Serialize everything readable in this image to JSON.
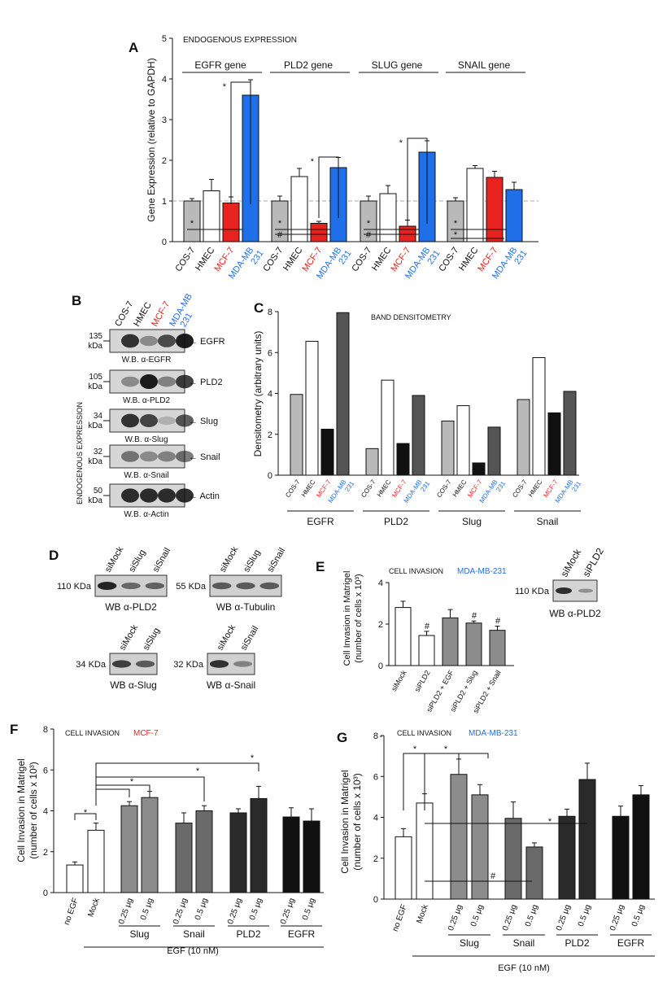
{
  "colors": {
    "red": "#e8231f",
    "blue": "#1f6fe8",
    "gray_light": "#b9b9b9",
    "gray_mid": "#8c8c8c",
    "gray_dark": "#555555",
    "black": "#111111",
    "white": "#ffffff",
    "dashed": "#aaaaaa"
  },
  "panelA": {
    "letter": "A",
    "title": "ENDOGENOUS EXPRESSION",
    "ylabel": "Gene Expression (relative to GAPDH)",
    "yticks": [
      "0",
      "1",
      "2",
      "3",
      "4",
      "5"
    ],
    "cell_lines": [
      {
        "label": "COS-7",
        "color": "#111111"
      },
      {
        "label": "HMEC",
        "color": "#111111"
      },
      {
        "label": "MCF-7",
        "color": "#e8231f"
      },
      {
        "label": "MDA-MB 231",
        "color": "#1f6fe8"
      }
    ],
    "sig_star": "*",
    "sig_hash": "#"
  },
  "panelB": {
    "letter": "B",
    "side_label": "ENDOGENOUS EXPRESSION",
    "lanes": [
      {
        "label": "COS-7",
        "color": "#111111"
      },
      {
        "label": "HMEC",
        "color": "#111111"
      },
      {
        "label": "MCF-7",
        "color": "#e8231f"
      },
      {
        "label": "MDA-MB 231",
        "color": "#1f6fe8"
      }
    ],
    "blots": [
      {
        "mw": "135 kDa",
        "antibody": "W.B. α-EGFR",
        "protein": "EGFR"
      },
      {
        "mw": "105 kDa",
        "antibody": "W.B. α-PLD2",
        "protein": "PLD2"
      },
      {
        "mw": "34 kDa",
        "antibody": "W.B. α-Slug",
        "protein": "Slug"
      },
      {
        "mw": "32 kDa",
        "antibody": "W.B. α-Snail",
        "protein": "Snail"
      },
      {
        "mw": "50 kDa",
        "antibody": "W.B. α-Actin",
        "protein": "Actin"
      }
    ]
  },
  "panelC": {
    "letter": "C",
    "title": "BAND DENSITOMETRY",
    "ylabel": "Densitometry (arbitrary units)"
  },
  "panelD": {
    "letter": "D",
    "blots": [
      {
        "lanes": [
          "siMock",
          "siSlug",
          "siSnail"
        ],
        "mw": "110 KDa",
        "antibody": "WB α-PLD2"
      },
      {
        "lanes": [
          "siMock",
          "siSlug",
          "siSnail"
        ],
        "mw": "55 KDa",
        "antibody": "WB α-Tubulin"
      },
      {
        "lanes": [
          "siMock",
          "siSlug"
        ],
        "mw": "34 KDa",
        "antibody": "WB α-Slug"
      },
      {
        "lanes": [
          "siMock",
          "siSnail"
        ],
        "mw": "32 KDa",
        "antibody": "WB α-Snail"
      }
    ]
  },
  "panelE": {
    "letter": "E",
    "title": "CELL INVASION",
    "cell_line": "MDA-MB-231",
    "ylabel1": "Cell Invasion in Matrigel",
    "ylabel2": "(number of cells x 10³)",
    "blot": {
      "lanes": [
        "siMock",
        "siPLD2"
      ],
      "mw": "110 KDa",
      "antibody": "WB α-PLD2"
    }
  },
  "panelF": {
    "letter": "F",
    "title": "CELL INVASION",
    "cell_line": "MCF-7",
    "ylabel1": "Cell Invasion in Matrigel",
    "ylabel2": "(number of cells x 10³)",
    "group_labels": [
      "Slug",
      "Snail",
      "PLD2",
      "EGFR"
    ],
    "footer": "EGF (10 nM)"
  },
  "panelG": {
    "letter": "G",
    "title": "CELL INVASION",
    "cell_line": "MDA-MB-231",
    "ylabel1": "Cell Invasion in Matrigel",
    "ylabel2": "(number of cells x 10³)",
    "group_labels": [
      "Slug",
      "Snail",
      "PLD2",
      "EGFR"
    ],
    "footer": "EGF (10 nM)"
  },
  "chart_data": [
    {
      "id": "A",
      "type": "bar",
      "title": "ENDOGENOUS EXPRESSION",
      "ylabel": "Gene Expression (relative to GAPDH)",
      "ylim": [
        0,
        5
      ],
      "groups": [
        "EGFR gene",
        "PLD2 gene",
        "SLUG gene",
        "SNAIL gene"
      ],
      "categories": [
        "COS-7",
        "HMEC",
        "MCF-7",
        "MDA-MB 231"
      ],
      "series": [
        {
          "name": "EGFR gene",
          "values": [
            1.0,
            1.25,
            0.95,
            3.6
          ],
          "errors": [
            0.06,
            0.28,
            0.15,
            0.38
          ]
        },
        {
          "name": "PLD2 gene",
          "values": [
            1.0,
            1.6,
            0.45,
            1.82
          ],
          "errors": [
            0.12,
            0.2,
            0.05,
            0.25
          ]
        },
        {
          "name": "SLUG gene",
          "values": [
            1.0,
            1.18,
            0.38,
            2.2
          ],
          "errors": [
            0.12,
            0.2,
            0.15,
            0.28
          ]
        },
        {
          "name": "SNAIL gene",
          "values": [
            1.0,
            1.8,
            1.58,
            1.28
          ],
          "errors": [
            0.08,
            0.07,
            0.15,
            0.18
          ]
        }
      ],
      "reference_line": 1
    },
    {
      "id": "C",
      "type": "bar",
      "title": "BAND DENSITOMETRY",
      "ylabel": "Densitometry (arbitrary units)",
      "ylim": [
        0,
        8
      ],
      "yticks": [
        0,
        2,
        4,
        6,
        8
      ],
      "groups": [
        "EGFR",
        "PLD2",
        "Slug",
        "Snail"
      ],
      "categories": [
        "COS-7",
        "HMEC",
        "MCF-7",
        "MDA-MB 231"
      ],
      "series": [
        {
          "name": "EGFR",
          "values": [
            3.95,
            6.55,
            2.25,
            7.95
          ]
        },
        {
          "name": "PLD2",
          "values": [
            1.3,
            4.65,
            1.55,
            3.9
          ]
        },
        {
          "name": "Slug",
          "values": [
            2.65,
            3.4,
            0.6,
            2.35
          ]
        },
        {
          "name": "Snail",
          "values": [
            3.7,
            5.75,
            3.05,
            4.1
          ]
        }
      ]
    },
    {
      "id": "E",
      "type": "bar",
      "ylim": [
        0,
        4
      ],
      "yticks": [
        0,
        2,
        4
      ],
      "categories": [
        "siMock",
        "siPLD2",
        "siPLD2 + EGF",
        "siPLD2 + Slug",
        "siPLD2 + Snail"
      ],
      "values": [
        2.8,
        1.45,
        2.3,
        2.05,
        1.7
      ],
      "errors": [
        0.3,
        0.2,
        0.4,
        0.1,
        0.2
      ],
      "annotations": [
        "",
        "#",
        "",
        "#",
        "#"
      ]
    },
    {
      "id": "F",
      "type": "bar",
      "ylim": [
        0,
        8
      ],
      "yticks": [
        0,
        2,
        4,
        6,
        8
      ],
      "categories": [
        "no EGF",
        "Mock",
        "Slug 0.25 μg",
        "Slug 0.5 μg",
        "Snail 0.25 μg",
        "Snail 0.5 μg",
        "PLD2 0.25 μg",
        "PLD2 0.5 μg",
        "EGFR 0.25 μg",
        "EGFR 0.5 μg"
      ],
      "values": [
        1.35,
        3.05,
        4.25,
        4.65,
        3.4,
        4.0,
        3.9,
        4.6,
        3.7,
        3.5
      ],
      "errors": [
        0.15,
        0.35,
        0.2,
        0.3,
        0.5,
        0.25,
        0.2,
        0.6,
        0.45,
        0.6
      ],
      "x_ticks_sub": [
        "0.25 μg",
        "0.5 μg"
      ]
    },
    {
      "id": "G",
      "type": "bar",
      "ylim": [
        0,
        8
      ],
      "yticks": [
        0,
        2,
        4,
        6,
        8
      ],
      "categories": [
        "no EGF",
        "Mock",
        "Slug 0.25 μg",
        "Slug 0.5 μg",
        "Snail 0.25 μg",
        "Snail 0.5 μg",
        "PLD2 0.25 μg",
        "PLD2 0.5 μg",
        "EGFR 0.25 μg",
        "EGFR 0.5 μg"
      ],
      "values": [
        3.05,
        4.7,
        6.1,
        5.1,
        3.95,
        2.55,
        4.05,
        5.85,
        4.05,
        5.1
      ],
      "errors": [
        0.4,
        0.45,
        0.75,
        0.5,
        0.8,
        0.2,
        0.35,
        0.8,
        0.5,
        0.45
      ],
      "x_ticks_sub": [
        "0.25 μg",
        "0.5 μg"
      ]
    }
  ]
}
